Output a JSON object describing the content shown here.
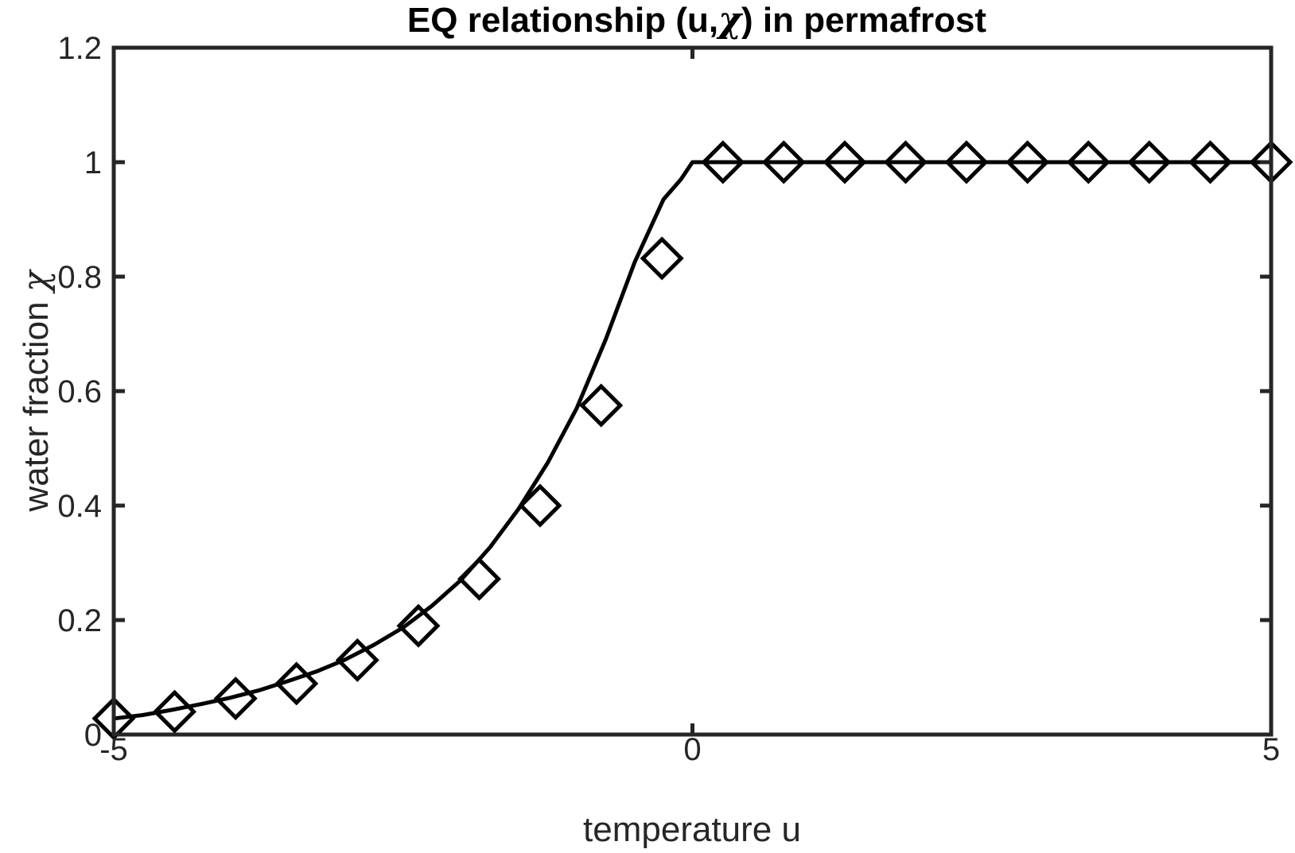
{
  "chart_data": {
    "type": "line",
    "title": "EQ relationship (u,",
    "title_symbol": "χ",
    "title_suffix": ") in permafrost",
    "xlabel": "temperature u",
    "ylabel": "water fraction",
    "ylabel_symbol": "χ",
    "xlim": [
      -5,
      5
    ],
    "ylim": [
      0,
      1.2
    ],
    "xticks": [
      -5,
      0,
      5
    ],
    "xtick_labels": [
      "-5",
      "0",
      "5"
    ],
    "yticks": [
      0,
      0.2,
      0.4,
      0.6,
      0.8,
      1.0,
      1.2
    ],
    "ytick_labels": [
      "0",
      "0.2",
      "0.4",
      "0.6",
      "0.8",
      "1",
      "1.2"
    ],
    "grid": false,
    "line_color": "#000000",
    "curve": {
      "x": [
        -5,
        -4.75,
        -4.5,
        -4.25,
        -4,
        -3.75,
        -3.5,
        -3.25,
        -3,
        -2.75,
        -2.5,
        -2.25,
        -2,
        -1.75,
        -1.5,
        -1.25,
        -1,
        -0.75,
        -0.5,
        -0.25,
        -0.1,
        0,
        0.5,
        1,
        2,
        3,
        4,
        5
      ],
      "y": [
        0.028,
        0.034,
        0.043,
        0.053,
        0.064,
        0.077,
        0.093,
        0.11,
        0.131,
        0.157,
        0.187,
        0.225,
        0.27,
        0.327,
        0.395,
        0.475,
        0.57,
        0.69,
        0.825,
        0.935,
        0.97,
        1.0,
        1.0,
        1.0,
        1.0,
        1.0,
        1.0,
        1.0
      ]
    },
    "markers": {
      "shape": "diamond",
      "x": [
        -5,
        -4.474,
        -3.947,
        -3.421,
        -2.895,
        -2.368,
        -1.842,
        -1.316,
        -0.789,
        -0.263,
        0.263,
        0.789,
        1.316,
        1.842,
        2.368,
        2.895,
        3.421,
        3.947,
        4.474,
        5
      ],
      "y": [
        0.028,
        0.04,
        0.063,
        0.089,
        0.13,
        0.19,
        0.272,
        0.4,
        0.575,
        0.832,
        1.0,
        1.0,
        1.0,
        1.0,
        1.0,
        1.0,
        1.0,
        1.0,
        1.0,
        1.0
      ]
    }
  }
}
